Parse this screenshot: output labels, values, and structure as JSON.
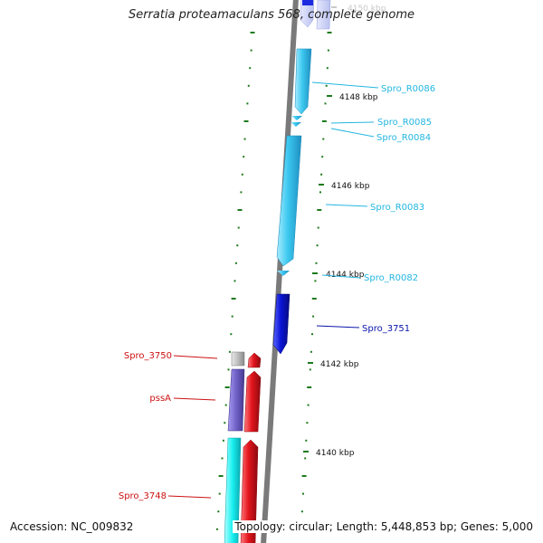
{
  "title": "Serratia proteamaculans 568, complete genome",
  "footer": {
    "accession": "Accession: NC_009832",
    "stats": "Topology: circular; Length: 5,448,853 bp; Genes: 5,000"
  },
  "colors": {
    "backbone": "#7a7a7a",
    "tick": "#1d7a1d",
    "rna": "#3cc8f0",
    "plus_gene": "#0a14d6",
    "minus_gene": "#e3141c",
    "pssA": "#7060c8",
    "gray_gene": "#bcbcbc",
    "cyan_gene": "#19f0f0",
    "plus_label": "#0a14aa",
    "rna_label": "#24b6e0",
    "minus_label": "#cc1111"
  },
  "scale": {
    "labels": [
      "4150 kbp",
      "4148 kbp",
      "4146 kbp",
      "4144 kbp",
      "4142 kbp",
      "4140 kbp"
    ]
  },
  "features": [
    {
      "id": "Spro_R0086",
      "label": "Spro_R0086",
      "type": "rna"
    },
    {
      "id": "Spro_R0085",
      "label": "Spro_R0085",
      "type": "rna"
    },
    {
      "id": "Spro_R0084",
      "label": "Spro_R0084",
      "type": "rna"
    },
    {
      "id": "Spro_R0083",
      "label": "Spro_R0083",
      "type": "rna"
    },
    {
      "id": "Spro_R0082",
      "label": "Spro_R0082",
      "type": "rna"
    },
    {
      "id": "Spro_3751",
      "label": "Spro_3751",
      "type": "plus_gene"
    },
    {
      "id": "Spro_3750",
      "label": "Spro_3750",
      "type": "minus_gene"
    },
    {
      "id": "pssA",
      "label": "pssA",
      "type": "minus_gene"
    },
    {
      "id": "Spro_3748",
      "label": "Spro_3748",
      "type": "minus_gene"
    }
  ]
}
